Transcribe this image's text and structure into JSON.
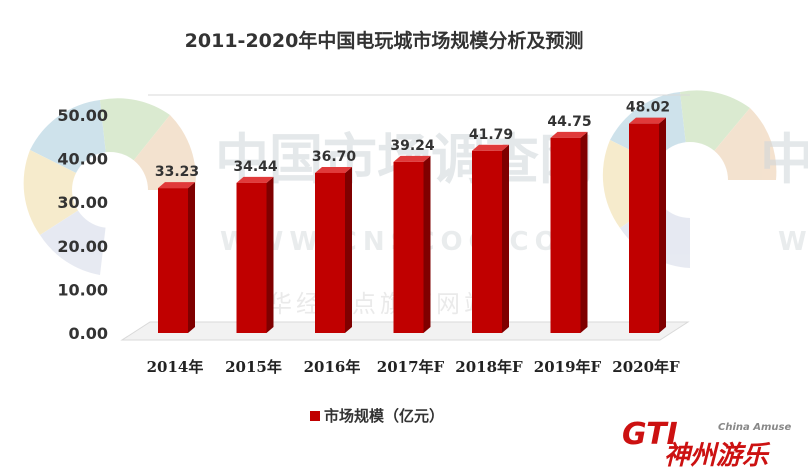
{
  "colors": {
    "bar_front": "#c00000",
    "bar_side": "#7f0000",
    "bar_top": "#e03a3a",
    "logo": "#cc1111"
  },
  "watermark": {
    "cn_name": "中国市场调查网",
    "url": "WWW.CNSCOC.COM",
    "sub": "华经视点旗下网站",
    "right_fragment": "中",
    "right_url_fragment": "W"
  },
  "logo": {
    "letters": "GTI",
    "cn": "神州游乐",
    "en": "China Amuse"
  },
  "chart_data": {
    "type": "bar",
    "title": "2011-2020年中国电玩城市场规模分析及预测",
    "categories": [
      "2014年",
      "2015年",
      "2016年",
      "2017年F",
      "2018年F",
      "2019年F",
      "2020年F"
    ],
    "series": [
      {
        "name": "市场规模（亿元）",
        "values": [
          33.23,
          34.44,
          36.7,
          39.24,
          41.79,
          44.75,
          48.02
        ],
        "labels": [
          "33.23",
          "34.44",
          "36.70",
          "39.24",
          "41.79",
          "44.75",
          "48.02"
        ]
      }
    ],
    "ylim": [
      0,
      50
    ],
    "yticks": [
      "0.00",
      "10.00",
      "20.00",
      "30.00",
      "40.00",
      "50.00"
    ],
    "xlabel": "",
    "ylabel": "",
    "grid": false,
    "legend_position": "bottom",
    "style": "3d-column"
  }
}
